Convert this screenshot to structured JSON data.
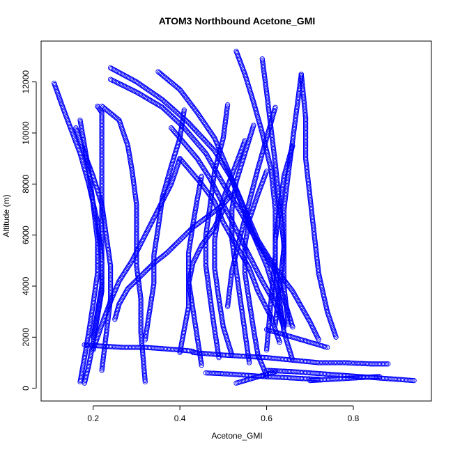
{
  "chart_data": {
    "type": "scatter",
    "title": "ATOM3 Northbound Acetone_GMI",
    "xlabel": "Acetone_GMI",
    "ylabel": "Altitude (m)",
    "xlim": [
      0.08,
      0.98
    ],
    "ylim": [
      -500,
      13600
    ],
    "x_ticks": [
      "0.2",
      "0.4",
      "0.6",
      "0.8"
    ],
    "x_tick_values": [
      0.2,
      0.4,
      0.6,
      0.8
    ],
    "y_ticks": [
      "0",
      "2000",
      "4000",
      "6000",
      "8000",
      "10000",
      "12000"
    ],
    "y_tick_values": [
      0,
      2000,
      4000,
      6000,
      8000,
      10000,
      12000
    ],
    "grid": false,
    "legend": "none",
    "marker": "open-circle",
    "color": "#0000ff",
    "series": [
      {
        "x": [
          0.11,
          0.13,
          0.15,
          0.17,
          0.19,
          0.21,
          0.22,
          0.22,
          0.21,
          0.2,
          0.19,
          0.18
        ],
        "y": [
          11950,
          11000,
          10100,
          9200,
          8000,
          6500,
          5000,
          3800,
          2800,
          1800,
          900,
          200
        ]
      },
      {
        "x": [
          0.17,
          0.18,
          0.19,
          0.2,
          0.21,
          0.21,
          0.2,
          0.19,
          0.18,
          0.17
        ],
        "y": [
          10500,
          9500,
          8500,
          7200,
          5800,
          4500,
          3300,
          2200,
          1200,
          250
        ]
      },
      {
        "x": [
          0.16,
          0.18,
          0.2,
          0.22,
          0.23,
          0.24,
          0.24,
          0.23,
          0.22
        ],
        "y": [
          10200,
          9200,
          8300,
          7200,
          6000,
          4800,
          3500,
          2100,
          700
        ]
      },
      {
        "x": [
          0.21,
          0.22,
          0.22,
          0.22,
          0.22,
          0.22,
          0.22,
          0.22,
          0.22,
          0.21,
          0.2
        ],
        "y": [
          11050,
          10800,
          10000,
          9000,
          8000,
          7000,
          6000,
          5000,
          4000,
          3000,
          2000
        ]
      },
      {
        "x": [
          0.22,
          0.26,
          0.28,
          0.29,
          0.3,
          0.3,
          0.3,
          0.31,
          0.31,
          0.32
        ],
        "y": [
          11050,
          10500,
          9500,
          8500,
          7200,
          6000,
          4800,
          3500,
          2200,
          250
        ]
      },
      {
        "x": [
          0.24,
          0.3,
          0.36,
          0.42,
          0.48,
          0.52,
          0.55,
          0.58,
          0.62,
          0.66,
          0.7,
          0.72
        ],
        "y": [
          12550,
          12000,
          11300,
          10400,
          9300,
          8200,
          7000,
          5800,
          4700,
          3800,
          2600,
          1900
        ]
      },
      {
        "x": [
          0.24,
          0.3,
          0.36,
          0.41,
          0.46,
          0.5,
          0.54,
          0.58,
          0.62,
          0.64,
          0.66
        ],
        "y": [
          12100,
          11600,
          11000,
          10200,
          9200,
          8000,
          6900,
          5700,
          4600,
          3500,
          2400
        ]
      },
      {
        "x": [
          0.35,
          0.4,
          0.44,
          0.48,
          0.51,
          0.54,
          0.57,
          0.6,
          0.62,
          0.64
        ],
        "y": [
          12400,
          11700,
          10800,
          9800,
          8600,
          7300,
          6000,
          4800,
          3700,
          2500
        ]
      },
      {
        "x": [
          0.38,
          0.41,
          0.44,
          0.47,
          0.5,
          0.53,
          0.56,
          0.59,
          0.62,
          0.64
        ],
        "y": [
          10200,
          9600,
          9000,
          8200,
          7200,
          6200,
          5200,
          4200,
          3300,
          2400
        ]
      },
      {
        "x": [
          0.4,
          0.42,
          0.45,
          0.48,
          0.5,
          0.53,
          0.56,
          0.58,
          0.61,
          0.63
        ],
        "y": [
          9000,
          8600,
          8000,
          7300,
          6500,
          5600,
          4700,
          3800,
          2800,
          1800
        ]
      },
      {
        "x": [
          0.53,
          0.55,
          0.57,
          0.59,
          0.61,
          0.62,
          0.62,
          0.61,
          0.6
        ],
        "y": [
          13200,
          12300,
          11200,
          10000,
          8600,
          7000,
          5200,
          3400,
          1500
        ]
      },
      {
        "x": [
          0.59,
          0.6,
          0.61,
          0.62,
          0.63,
          0.64,
          0.64,
          0.65
        ],
        "y": [
          12900,
          11600,
          10200,
          8800,
          7200,
          5600,
          4000,
          2500
        ]
      },
      {
        "x": [
          0.68,
          0.67,
          0.66,
          0.65,
          0.64,
          0.64,
          0.63,
          0.62
        ],
        "y": [
          12300,
          11000,
          9700,
          8400,
          7000,
          5500,
          4000,
          2500
        ]
      },
      {
        "x": [
          0.68,
          0.69,
          0.69,
          0.7,
          0.71,
          0.72,
          0.74,
          0.76
        ],
        "y": [
          12300,
          10600,
          9000,
          7500,
          6000,
          4500,
          3000,
          2000
        ]
      },
      {
        "x": [
          0.62,
          0.6,
          0.58,
          0.56,
          0.54,
          0.52,
          0.51
        ],
        "y": [
          11000,
          9800,
          8600,
          7300,
          6000,
          4600,
          3200
        ]
      },
      {
        "x": [
          0.51,
          0.5,
          0.48,
          0.47,
          0.46,
          0.46,
          0.47,
          0.48,
          0.49
        ],
        "y": [
          11100,
          9800,
          8500,
          7200,
          6000,
          4800,
          3500,
          2300,
          1200
        ]
      },
      {
        "x": [
          0.41,
          0.4,
          0.38,
          0.36,
          0.35,
          0.34,
          0.34,
          0.33,
          0.32
        ],
        "y": [
          10900,
          9800,
          8700,
          7500,
          6300,
          5200,
          4100,
          3000,
          1900
        ]
      },
      {
        "x": [
          0.4,
          0.38,
          0.35,
          0.32,
          0.29,
          0.26,
          0.24,
          0.22,
          0.2
        ],
        "y": [
          9000,
          8000,
          7000,
          6000,
          5000,
          4200,
          3400,
          2500,
          1500
        ]
      },
      {
        "x": [
          0.52,
          0.5,
          0.47,
          0.43,
          0.4,
          0.37,
          0.34,
          0.31,
          0.28,
          0.26,
          0.25
        ],
        "y": [
          7600,
          7200,
          6800,
          6300,
          5800,
          5300,
          4900,
          4400,
          3900,
          3300,
          2700
        ]
      },
      {
        "x": [
          0.55,
          0.53,
          0.51,
          0.49,
          0.48,
          0.48,
          0.49,
          0.5,
          0.52
        ],
        "y": [
          9700,
          8800,
          7900,
          6900,
          5800,
          4700,
          3500,
          2400,
          1300
        ]
      },
      {
        "x": [
          0.57,
          0.55,
          0.53,
          0.52,
          0.52,
          0.53,
          0.54,
          0.55,
          0.56
        ],
        "y": [
          10300,
          9200,
          8100,
          7000,
          5800,
          4600,
          3400,
          2200,
          1000
        ]
      },
      {
        "x": [
          0.45,
          0.44,
          0.43,
          0.42,
          0.42,
          0.43,
          0.44,
          0.45
        ],
        "y": [
          8300,
          7400,
          6400,
          5300,
          4200,
          3100,
          2000,
          900
        ]
      },
      {
        "x": [
          0.5,
          0.48,
          0.45,
          0.43,
          0.42,
          0.42,
          0.41,
          0.4
        ],
        "y": [
          7000,
          6300,
          5600,
          4900,
          4100,
          3200,
          2300,
          1400
        ]
      },
      {
        "x": [
          0.6,
          0.58,
          0.56,
          0.55,
          0.55,
          0.56,
          0.57,
          0.58,
          0.6
        ],
        "y": [
          8500,
          7600,
          6600,
          5600,
          4500,
          3400,
          2300,
          1300,
          500
        ]
      },
      {
        "x": [
          0.66,
          0.64,
          0.63,
          0.62,
          0.62,
          0.63,
          0.64,
          0.66
        ],
        "y": [
          9500,
          8300,
          7000,
          5800,
          4600,
          3400,
          2200,
          1100
        ]
      },
      {
        "x": [
          0.18,
          0.22,
          0.27,
          0.32,
          0.36,
          0.4,
          0.43
        ],
        "y": [
          1700,
          1650,
          1600,
          1600,
          1550,
          1500,
          1450
        ]
      },
      {
        "x": [
          0.43,
          0.5,
          0.55,
          0.6,
          0.66,
          0.72,
          0.78,
          0.84,
          0.88
        ],
        "y": [
          1400,
          1300,
          1250,
          1200,
          1100,
          1000,
          1000,
          950,
          950
        ]
      },
      {
        "x": [
          0.6,
          0.66,
          0.7,
          0.74,
          0.78,
          0.82,
          0.86,
          0.9,
          0.94
        ],
        "y": [
          700,
          650,
          600,
          550,
          500,
          450,
          400,
          350,
          300
        ]
      },
      {
        "x": [
          0.46,
          0.52,
          0.56,
          0.6,
          0.64,
          0.68,
          0.72
        ],
        "y": [
          600,
          550,
          500,
          450,
          420,
          380,
          350
        ]
      },
      {
        "x": [
          0.53,
          0.54,
          0.55,
          0.56,
          0.57,
          0.58,
          0.59,
          0.6,
          0.61,
          0.62
        ],
        "y": [
          200,
          250,
          300,
          350,
          400,
          450,
          500,
          550,
          600,
          650
        ]
      },
      {
        "x": [
          0.7,
          0.72,
          0.74,
          0.76,
          0.78,
          0.8,
          0.82,
          0.84,
          0.86
        ],
        "y": [
          300,
          320,
          340,
          360,
          380,
          400,
          420,
          440,
          460
        ]
      },
      {
        "x": [
          0.6,
          0.62,
          0.64,
          0.66,
          0.68,
          0.7,
          0.72,
          0.74
        ],
        "y": [
          2300,
          2200,
          2100,
          2000,
          1900,
          1800,
          1700,
          1600
        ]
      }
    ]
  }
}
